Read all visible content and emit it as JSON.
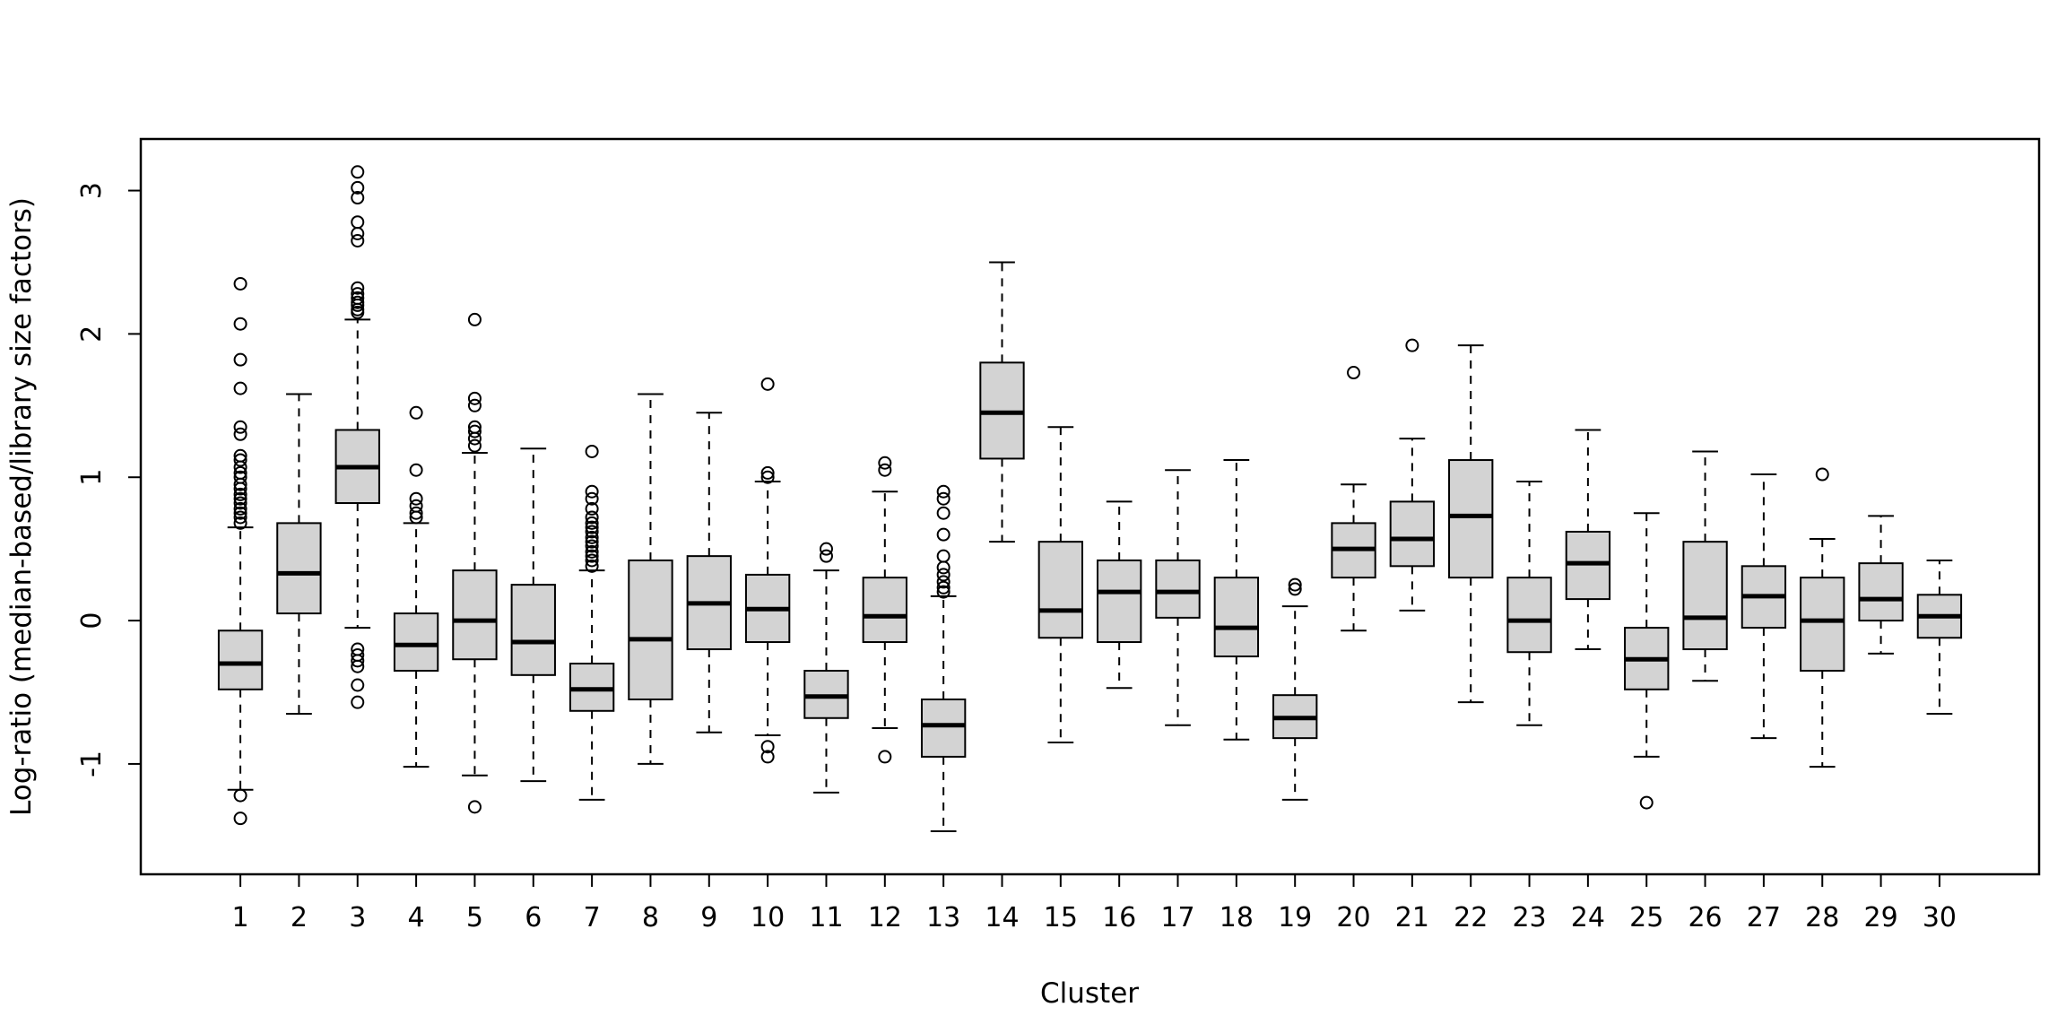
{
  "page": {
    "background": "#ffffff"
  },
  "chart_data": {
    "type": "boxplot",
    "title": "",
    "xlabel": "Cluster",
    "ylabel": "Log-ratio (median-based/library size factors)",
    "ylim": [
      -1.77,
      3.36
    ],
    "yticks": [
      -1,
      0,
      1,
      2,
      3
    ],
    "grid": false,
    "legend": false,
    "styles": {
      "box_fill": "#d3d3d3",
      "line_color": "#000000",
      "background": "#ffffff"
    },
    "categories": [
      "1",
      "2",
      "3",
      "4",
      "5",
      "6",
      "7",
      "8",
      "9",
      "10",
      "11",
      "12",
      "13",
      "14",
      "15",
      "16",
      "17",
      "18",
      "19",
      "20",
      "21",
      "22",
      "23",
      "24",
      "25",
      "26",
      "27",
      "28",
      "29",
      "30"
    ],
    "series": [
      {
        "cluster": "1",
        "lower": -1.18,
        "q1": -0.48,
        "median": -0.3,
        "q3": -0.07,
        "upper": 0.65,
        "outliers_high": [
          0.68,
          0.72,
          0.75,
          0.78,
          0.82,
          0.85,
          0.88,
          0.92,
          0.95,
          1.0,
          1.03,
          1.07,
          1.12,
          1.15,
          1.3,
          1.35,
          1.62,
          1.82,
          2.07,
          2.35
        ],
        "outliers_low": [
          -1.22,
          -1.38
        ]
      },
      {
        "cluster": "2",
        "lower": -0.65,
        "q1": 0.05,
        "median": 0.33,
        "q3": 0.68,
        "upper": 1.58,
        "outliers_high": [],
        "outliers_low": []
      },
      {
        "cluster": "3",
        "lower": -0.05,
        "q1": 0.82,
        "median": 1.07,
        "q3": 1.33,
        "upper": 2.1,
        "outliers_high": [
          2.15,
          2.17,
          2.2,
          2.22,
          2.25,
          2.28,
          2.32,
          2.65,
          2.7,
          2.78,
          2.95,
          3.02,
          3.13
        ],
        "outliers_low": [
          -0.2,
          -0.24,
          -0.28,
          -0.32,
          -0.45,
          -0.57
        ]
      },
      {
        "cluster": "4",
        "lower": -1.02,
        "q1": -0.35,
        "median": -0.17,
        "q3": 0.05,
        "upper": 0.68,
        "outliers_high": [
          0.72,
          0.75,
          0.8,
          0.85,
          1.05,
          1.45
        ],
        "outliers_low": []
      },
      {
        "cluster": "5",
        "lower": -1.08,
        "q1": -0.27,
        "median": 0.0,
        "q3": 0.35,
        "upper": 1.17,
        "outliers_high": [
          1.22,
          1.27,
          1.32,
          1.35,
          1.5,
          1.55,
          2.1
        ],
        "outliers_low": [
          -1.3
        ]
      },
      {
        "cluster": "6",
        "lower": -1.12,
        "q1": -0.38,
        "median": -0.15,
        "q3": 0.25,
        "upper": 1.2,
        "outliers_high": [],
        "outliers_low": []
      },
      {
        "cluster": "7",
        "lower": -1.25,
        "q1": -0.63,
        "median": -0.48,
        "q3": -0.3,
        "upper": 0.35,
        "outliers_high": [
          0.38,
          0.42,
          0.45,
          0.48,
          0.52,
          0.55,
          0.58,
          0.62,
          0.65,
          0.68,
          0.72,
          0.78,
          0.85,
          0.9,
          1.18
        ],
        "outliers_low": []
      },
      {
        "cluster": "8",
        "lower": -1.0,
        "q1": -0.55,
        "median": -0.13,
        "q3": 0.42,
        "upper": 1.58,
        "outliers_high": [],
        "outliers_low": []
      },
      {
        "cluster": "9",
        "lower": -0.78,
        "q1": -0.2,
        "median": 0.12,
        "q3": 0.45,
        "upper": 1.45,
        "outliers_high": [],
        "outliers_low": []
      },
      {
        "cluster": "10",
        "lower": -0.8,
        "q1": -0.15,
        "median": 0.08,
        "q3": 0.32,
        "upper": 0.97,
        "outliers_high": [
          1.0,
          1.03,
          1.65
        ],
        "outliers_low": [
          -0.88,
          -0.95
        ]
      },
      {
        "cluster": "11",
        "lower": -1.2,
        "q1": -0.68,
        "median": -0.53,
        "q3": -0.35,
        "upper": 0.35,
        "outliers_high": [
          0.45,
          0.5
        ],
        "outliers_low": []
      },
      {
        "cluster": "12",
        "lower": -0.75,
        "q1": -0.15,
        "median": 0.03,
        "q3": 0.3,
        "upper": 0.9,
        "outliers_high": [
          1.05,
          1.1
        ],
        "outliers_low": [
          -0.95
        ]
      },
      {
        "cluster": "13",
        "lower": -1.47,
        "q1": -0.95,
        "median": -0.73,
        "q3": -0.55,
        "upper": 0.17,
        "outliers_high": [
          0.2,
          0.23,
          0.27,
          0.32,
          0.37,
          0.45,
          0.6,
          0.75,
          0.85,
          0.9
        ],
        "outliers_low": []
      },
      {
        "cluster": "14",
        "lower": 0.55,
        "q1": 1.13,
        "median": 1.45,
        "q3": 1.8,
        "upper": 2.5,
        "outliers_high": [],
        "outliers_low": []
      },
      {
        "cluster": "15",
        "lower": -0.85,
        "q1": -0.12,
        "median": 0.07,
        "q3": 0.55,
        "upper": 1.35,
        "outliers_high": [],
        "outliers_low": []
      },
      {
        "cluster": "16",
        "lower": -0.47,
        "q1": -0.15,
        "median": 0.2,
        "q3": 0.42,
        "upper": 0.83,
        "outliers_high": [],
        "outliers_low": []
      },
      {
        "cluster": "17",
        "lower": -0.73,
        "q1": 0.02,
        "median": 0.2,
        "q3": 0.42,
        "upper": 1.05,
        "outliers_high": [],
        "outliers_low": []
      },
      {
        "cluster": "18",
        "lower": -0.83,
        "q1": -0.25,
        "median": -0.05,
        "q3": 0.3,
        "upper": 1.12,
        "outliers_high": [],
        "outliers_low": []
      },
      {
        "cluster": "19",
        "lower": -1.25,
        "q1": -0.82,
        "median": -0.68,
        "q3": -0.52,
        "upper": 0.1,
        "outliers_high": [
          0.22,
          0.25
        ],
        "outliers_low": []
      },
      {
        "cluster": "20",
        "lower": -0.07,
        "q1": 0.3,
        "median": 0.5,
        "q3": 0.68,
        "upper": 0.95,
        "outliers_high": [
          1.73
        ],
        "outliers_low": []
      },
      {
        "cluster": "21",
        "lower": 0.07,
        "q1": 0.38,
        "median": 0.57,
        "q3": 0.83,
        "upper": 1.27,
        "outliers_high": [
          1.92
        ],
        "outliers_low": []
      },
      {
        "cluster": "22",
        "lower": -0.57,
        "q1": 0.3,
        "median": 0.73,
        "q3": 1.12,
        "upper": 1.92,
        "outliers_high": [],
        "outliers_low": []
      },
      {
        "cluster": "23",
        "lower": -0.73,
        "q1": -0.22,
        "median": 0.0,
        "q3": 0.3,
        "upper": 0.97,
        "outliers_high": [],
        "outliers_low": []
      },
      {
        "cluster": "24",
        "lower": -0.2,
        "q1": 0.15,
        "median": 0.4,
        "q3": 0.62,
        "upper": 1.33,
        "outliers_high": [],
        "outliers_low": []
      },
      {
        "cluster": "25",
        "lower": -0.95,
        "q1": -0.48,
        "median": -0.27,
        "q3": -0.05,
        "upper": 0.75,
        "outliers_high": [],
        "outliers_low": [
          -1.27
        ]
      },
      {
        "cluster": "26",
        "lower": -0.42,
        "q1": -0.2,
        "median": 0.02,
        "q3": 0.55,
        "upper": 1.18,
        "outliers_high": [],
        "outliers_low": []
      },
      {
        "cluster": "27",
        "lower": -0.82,
        "q1": -0.05,
        "median": 0.17,
        "q3": 0.38,
        "upper": 1.02,
        "outliers_high": [],
        "outliers_low": []
      },
      {
        "cluster": "28",
        "lower": -1.02,
        "q1": -0.35,
        "median": 0.0,
        "q3": 0.3,
        "upper": 0.57,
        "outliers_high": [
          1.02
        ],
        "outliers_low": []
      },
      {
        "cluster": "29",
        "lower": -0.23,
        "q1": 0.0,
        "median": 0.15,
        "q3": 0.4,
        "upper": 0.73,
        "outliers_high": [],
        "outliers_low": []
      },
      {
        "cluster": "30",
        "lower": -0.65,
        "q1": -0.12,
        "median": 0.03,
        "q3": 0.18,
        "upper": 0.42,
        "outliers_high": [],
        "outliers_low": []
      }
    ]
  }
}
